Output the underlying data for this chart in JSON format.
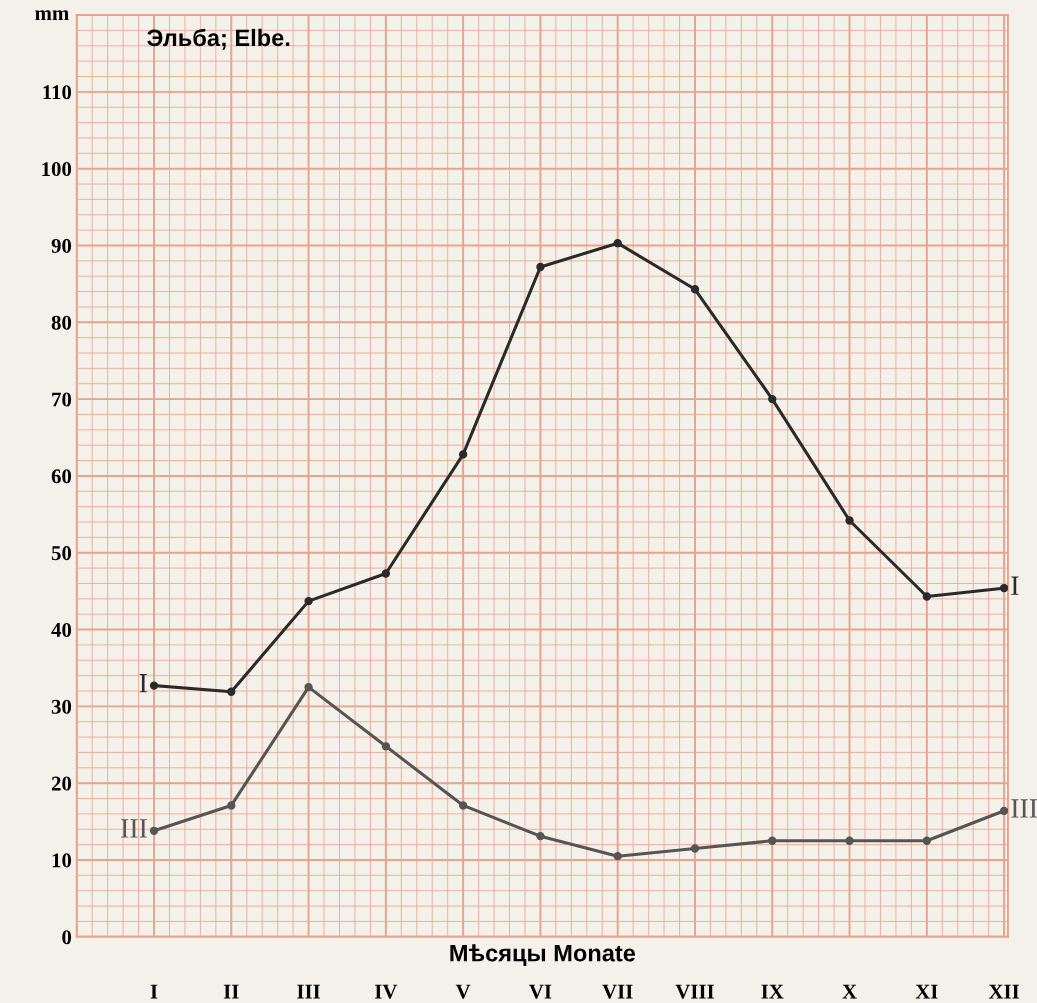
{
  "chart_data": {
    "type": "line",
    "title": "Эльба; Elbe.",
    "ylabel": "mm",
    "xlabel": "Мѣсяцы Monate",
    "categories": [
      "I",
      "II",
      "III",
      "IV",
      "V",
      "VI",
      "VII",
      "VIII",
      "IX",
      "X",
      "XI",
      "XII"
    ],
    "series": [
      {
        "name": "I",
        "color": "#2a2a2a",
        "values": [
          32.7,
          31.9,
          43.7,
          47.3,
          62.8,
          87.2,
          90.3,
          84.3,
          70.0,
          54.2,
          44.3,
          45.4
        ]
      },
      {
        "name": "III",
        "color": "#555555",
        "values": [
          13.8,
          17.1,
          32.5,
          24.8,
          17.1,
          13.1,
          10.5,
          11.5,
          12.5,
          12.5,
          12.5,
          16.4
        ]
      }
    ],
    "ylim": [
      0,
      120
    ],
    "yticks": [
      0,
      10,
      20,
      30,
      40,
      50,
      60,
      70,
      80,
      90,
      100,
      110
    ],
    "grid": true,
    "marker": "circle",
    "line_style": "solid",
    "legend": false
  }
}
